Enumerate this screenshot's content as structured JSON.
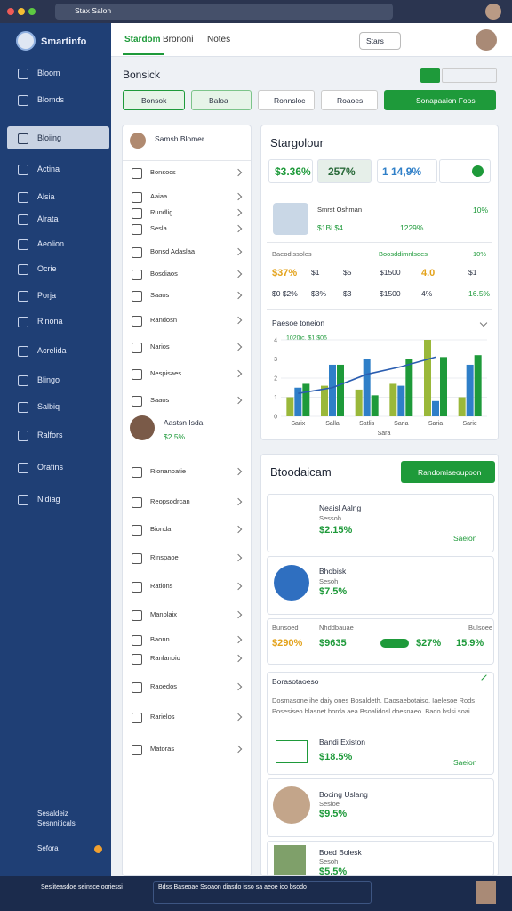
{
  "browser": {
    "tab": "Stax Salon"
  },
  "sidebar": {
    "brand": "Smartinfo",
    "items": [
      "Bloom",
      "Blomds",
      "Bloiing",
      "Actina",
      "Alsia",
      "Alrata",
      "Aeolion",
      "Ocrie",
      "Porja",
      "Rinona",
      "Acrelida",
      "Blingo",
      "Salbiq",
      "Ralfors",
      "Orafins",
      "Nidiag"
    ],
    "footer": [
      "Sesaldeiz",
      "Sesnniticals",
      "Sefora"
    ]
  },
  "header": {
    "tabs": [
      "Stardom",
      "Brononi",
      "Notes"
    ],
    "button": "Stars"
  },
  "toolbar": {
    "title": "Bonsick",
    "filters": [
      "Bonsok",
      "Baloa",
      "Ronnsloc",
      "Roaoes"
    ],
    "action": "Sonapaaion Foos"
  },
  "list": {
    "title": "Samsh Blomer",
    "items": [
      "Bonsocs",
      "Aaiaa",
      "Rundlig",
      "Sesla",
      "Bonsd Adaslaa",
      "Bosdiaos",
      "Saaos",
      "Randosn",
      "Narios",
      "Nespisaes",
      "Saaos",
      "Rionanoatie",
      "Reopsodrcan",
      "Bionda",
      "Rinspaoe",
      "Rations",
      "Manolaix",
      "Baonn",
      "Ranlanoio",
      "Raoedos",
      "Rarielos",
      "Matoras"
    ],
    "profile": {
      "name": "Aastsn Isda",
      "value": "$2.5%"
    }
  },
  "summary": {
    "title": "Stargolour",
    "stats": [
      "$3.36%",
      "257%",
      "1 14,9%"
    ],
    "profile": {
      "name": "Smrst Oshman",
      "sub": "$1Bi $4",
      "value": "10%",
      "value2": "1229%"
    },
    "metrics": {
      "headers": [
        "Baeodissoles",
        "Boosddimnlsdes",
        "10%"
      ],
      "rows": [
        [
          "$37%",
          "$1",
          "$5",
          "$1500",
          "4.0",
          "$1"
        ],
        [
          "$0 $2%",
          "$3%",
          "$3",
          "$1500",
          "4%",
          "16.5%"
        ]
      ]
    }
  },
  "chart": {
    "title": "Paesoe toneion",
    "legend": "1020ic. $1 $06",
    "categories": [
      "Sarix",
      "Salla",
      "Satlis",
      "Saria",
      "Saria",
      "Sarie"
    ],
    "axis_label": "Sara",
    "ylim": [
      0,
      4
    ],
    "yticks": [
      0,
      1,
      2,
      3,
      4
    ],
    "series": [
      {
        "color": "#9ab83a",
        "values": [
          1.0,
          1.6,
          1.4,
          1.7,
          4.0,
          1.0
        ]
      },
      {
        "color": "#2f7fc8",
        "values": [
          1.5,
          2.7,
          3.0,
          1.6,
          0.8,
          2.7
        ]
      },
      {
        "color": "#1e9a3a",
        "values": [
          1.7,
          2.7,
          1.1,
          3.0,
          3.1,
          3.2
        ]
      }
    ],
    "line": {
      "color": "#2a5db0",
      "values": [
        1.2,
        1.5,
        2.2,
        2.6,
        3.1,
        null
      ]
    }
  },
  "panel": {
    "title": "Btoodaicam",
    "button": "Randomiseoupoon",
    "card1": {
      "title": "Neaisl Aalng",
      "sub": "Sessoh",
      "value": "$2.15%",
      "link": "Saeion"
    },
    "card2": {
      "title": "Bhobisk",
      "sub": "Sesoh",
      "value": "$7.5%"
    },
    "card3": {
      "labels": [
        "Bunsoed",
        "Nhddbauae",
        "Bulsoee"
      ],
      "values": [
        "$290%",
        "$9635",
        "$27%",
        "15.9%"
      ]
    },
    "card4": {
      "title": "Borasotaoeso",
      "text": [
        "Dosmasone ihe daiy ones Bosaldeth. Daosaebotaiso. Iaelesoe Rods",
        "Posesiseo blasnet borda aea Bsoalidosl doesnaeo. Bado bslsi soai"
      ],
      "item": "Bandi Existon",
      "value": "$18.5%",
      "link": "Saeion"
    },
    "card5": {
      "title": "Bocing Uslang",
      "sub": "Sesioe",
      "value": "$9.5%"
    },
    "card6": {
      "title": "Boed Bolesk",
      "sub": "Sesoh",
      "value": "$5.5%"
    }
  },
  "taskbar": {
    "left": "Sesliteasdoe seinsce ooriessi",
    "center": "Bdss Baseoae Ssoaon diasdo isso sa aeoe ioo bsodo"
  }
}
